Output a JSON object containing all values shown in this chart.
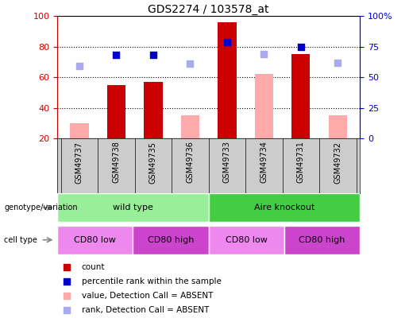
{
  "title": "GDS2274 / 103578_at",
  "samples": [
    "GSM49737",
    "GSM49738",
    "GSM49735",
    "GSM49736",
    "GSM49733",
    "GSM49734",
    "GSM49731",
    "GSM49732"
  ],
  "count_values": [
    null,
    55,
    57,
    null,
    96,
    null,
    75,
    null
  ],
  "count_absent_values": [
    30,
    null,
    null,
    35,
    null,
    62,
    null,
    35
  ],
  "rank_present": [
    null,
    68,
    68,
    null,
    79,
    null,
    75,
    null
  ],
  "rank_absent": [
    59,
    null,
    null,
    61,
    null,
    69,
    null,
    62
  ],
  "ylim_left": [
    20,
    100
  ],
  "ylim_right": [
    0,
    100
  ],
  "yticks_left": [
    20,
    40,
    60,
    80,
    100
  ],
  "yticks_right": [
    0,
    25,
    50,
    75,
    100
  ],
  "yticklabels_right": [
    "0",
    "25",
    "50",
    "75",
    "100%"
  ],
  "color_count_present": "#cc0000",
  "color_count_absent": "#ffaaaa",
  "color_rank_present": "#0000cc",
  "color_rank_absent": "#aaaaee",
  "color_left_axis": "#cc0000",
  "color_right_axis": "#0000cc",
  "bar_width": 0.5,
  "dot_size": 30,
  "genotype_groups": [
    {
      "label": "wild type",
      "start": 0,
      "end": 4,
      "color": "#99ee99"
    },
    {
      "label": "Aire knockout",
      "start": 4,
      "end": 8,
      "color": "#44cc44"
    }
  ],
  "celltype_groups": [
    {
      "label": "CD80 low",
      "start": 0,
      "end": 2,
      "color": "#ee88ee"
    },
    {
      "label": "CD80 high",
      "start": 2,
      "end": 4,
      "color": "#cc44cc"
    },
    {
      "label": "CD80 low",
      "start": 4,
      "end": 6,
      "color": "#ee88ee"
    },
    {
      "label": "CD80 high",
      "start": 6,
      "end": 8,
      "color": "#cc44cc"
    }
  ],
  "legend_items": [
    {
      "label": "count",
      "color": "#cc0000"
    },
    {
      "label": "percentile rank within the sample",
      "color": "#0000cc"
    },
    {
      "label": "value, Detection Call = ABSENT",
      "color": "#ffaaaa"
    },
    {
      "label": "rank, Detection Call = ABSENT",
      "color": "#aaaaee"
    }
  ]
}
